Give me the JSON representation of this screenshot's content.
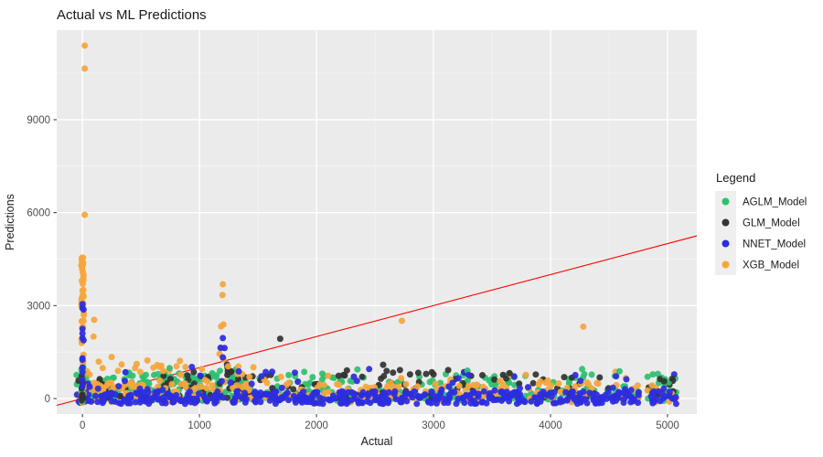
{
  "title": "Actual vs ML Predictions",
  "axes": {
    "x_label": "Actual",
    "y_label": "Predictions",
    "x_ticks": [
      0,
      1000,
      2000,
      3000,
      4000,
      5000
    ],
    "x_minor": [
      500,
      1500,
      2500,
      3500,
      4500
    ],
    "y_ticks": [
      0,
      3000,
      6000,
      9000
    ],
    "y_minor": [
      1500,
      4500,
      7500,
      10500
    ]
  },
  "legend": {
    "title": "Legend"
  },
  "colors": {
    "background": "#FFFFFF",
    "panel": "#EBEBEB",
    "grid_major": "#FFFFFF",
    "grid_minor": "#F5F5F5",
    "tick_mark": "#333333",
    "tick_text": "#4D4D4D",
    "text": "#1A1A1A",
    "identity_line": "#FF0000",
    "legend_key_fill": "#EFEFEF"
  },
  "chart_data": {
    "type": "scatter",
    "title": "Actual vs ML Predictions",
    "xlabel": "Actual",
    "ylabel": "Predictions",
    "xlim": [
      -220,
      5250
    ],
    "ylim": [
      -500,
      11890
    ],
    "grid": true,
    "legend_position": "right",
    "identity_line": {
      "slope": 1,
      "intercept": 0,
      "color": "#FF0000"
    },
    "seed": 20240,
    "point_radius": 3.5,
    "band_order": [
      "AGLM_Model",
      "GLM_Model",
      "XGB_Model",
      "NNET_Model"
    ],
    "stack_order": [
      "XGB_Model",
      "AGLM_Model",
      "GLM_Model"
    ],
    "point_order": [
      "AGLM_Model",
      "GLM_Model",
      "XGB_Model",
      "NNET_Model"
    ],
    "series": [
      {
        "name": "AGLM_Model",
        "color": "#2EC06F",
        "points": [
          [
            4270,
            950
          ],
          [
            2350,
            940
          ],
          [
            4590,
            880
          ],
          [
            3290,
            900
          ],
          [
            1895,
            860
          ],
          [
            5010,
            520
          ],
          [
            2050,
            800
          ],
          [
            745,
            980
          ],
          [
            4980,
            620
          ]
        ],
        "stacks": [
          {
            "x": 0,
            "jitter": 10,
            "y0": -100,
            "y1": 1060,
            "n": 12
          }
        ],
        "bands": [
          {
            "x0": -60,
            "x1": 5080,
            "y0": 30,
            "y1": 800,
            "n": 280,
            "pow": 1.8,
            "gaps": [
              [
                4760,
                4825
              ]
            ]
          },
          {
            "x0": -60,
            "x1": 5080,
            "y0": -80,
            "y1": 160,
            "n": 140,
            "pow": 1.0,
            "gaps": [
              [
                4760,
                4825
              ]
            ]
          },
          {
            "x0": -60,
            "x1": 1060,
            "y0": 150,
            "y1": 950,
            "n": 60,
            "pow": 1.3
          },
          {
            "x0": 1080,
            "x1": 1330,
            "y0": 300,
            "y1": 950,
            "n": 20,
            "pow": 1.2
          }
        ]
      },
      {
        "name": "GLM_Model",
        "color": "#333333",
        "points": [
          [
            1690,
            1930
          ],
          [
            2570,
            1090
          ],
          [
            2870,
            830
          ],
          [
            1235,
            1100
          ],
          [
            1240,
            1000
          ],
          [
            1242,
            880
          ],
          [
            1238,
            760
          ],
          [
            4970,
            560
          ],
          [
            3650,
            820
          ],
          [
            3000,
            780
          ],
          [
            2390,
            700
          ],
          [
            5040,
            640
          ]
        ],
        "stacks": [
          {
            "x": 2,
            "jitter": 10,
            "y0": -80,
            "y1": 800,
            "n": 9
          }
        ],
        "bands": [
          {
            "x0": -60,
            "x1": 5080,
            "y0": 20,
            "y1": 920,
            "n": 160,
            "pow": 1.9,
            "gaps": [
              [
                4760,
                4825
              ]
            ]
          }
        ]
      },
      {
        "name": "NNET_Model",
        "color": "#2C2CE0",
        "points": [
          [
            1200,
            1950
          ],
          [
            1180,
            1640
          ],
          [
            1215,
            1630
          ],
          [
            1200,
            1330
          ],
          [
            2450,
            950
          ],
          [
            935,
            1020
          ],
          [
            3300,
            760
          ],
          [
            0,
            3050
          ],
          [
            0,
            2920
          ],
          [
            10,
            2870
          ],
          [
            0,
            2250
          ],
          [
            0,
            2100
          ],
          [
            0,
            1950
          ],
          [
            10,
            1880
          ],
          [
            0,
            1300
          ],
          [
            0,
            1250
          ],
          [
            0,
            1000
          ],
          [
            0,
            850
          ],
          [
            0,
            600
          ],
          [
            0,
            400
          ]
        ],
        "stacks": [],
        "bands": [
          {
            "x0": -60,
            "x1": 5080,
            "y0": -170,
            "y1": 240,
            "n": 430,
            "pow": 1.1,
            "gaps": [
              [
                4760,
                4825
              ]
            ]
          },
          {
            "x0": -60,
            "x1": 5080,
            "y0": 200,
            "y1": 900,
            "n": 50,
            "pow": 1.9
          }
        ]
      },
      {
        "name": "XGB_Model",
        "color": "#F5A63B",
        "points": [
          [
            20,
            11390
          ],
          [
            20,
            10650
          ],
          [
            20,
            5930
          ],
          [
            2730,
            2510
          ],
          [
            4280,
            2320
          ],
          [
            1200,
            3690
          ],
          [
            1197,
            3340
          ],
          [
            1205,
            2390
          ],
          [
            1185,
            2330
          ],
          [
            1190,
            1630
          ],
          [
            1172,
            1445
          ],
          [
            1207,
            1270
          ],
          [
            1245,
            1040
          ],
          [
            100,
            2540
          ],
          [
            95,
            2000
          ],
          [
            250,
            1340
          ],
          [
            555,
            1230
          ],
          [
            640,
            1080
          ],
          [
            880,
            1020
          ],
          [
            1020,
            950
          ],
          [
            335,
            1100
          ],
          [
            450,
            980
          ]
        ],
        "stacks": [
          {
            "x": 0,
            "jitter": 12,
            "y0": -150,
            "y1": 4550,
            "n": 58
          }
        ],
        "bands": [
          {
            "x0": -60,
            "x1": 5080,
            "y0": -120,
            "y1": 520,
            "n": 230,
            "pow": 1.2,
            "gaps": [
              [
                4760,
                4825
              ]
            ]
          },
          {
            "x0": -60,
            "x1": 1060,
            "y0": 200,
            "y1": 1300,
            "n": 35,
            "pow": 1.5
          },
          {
            "x0": 1060,
            "x1": 5080,
            "y0": 250,
            "y1": 1050,
            "n": 30,
            "pow": 1.5
          }
        ]
      }
    ]
  }
}
